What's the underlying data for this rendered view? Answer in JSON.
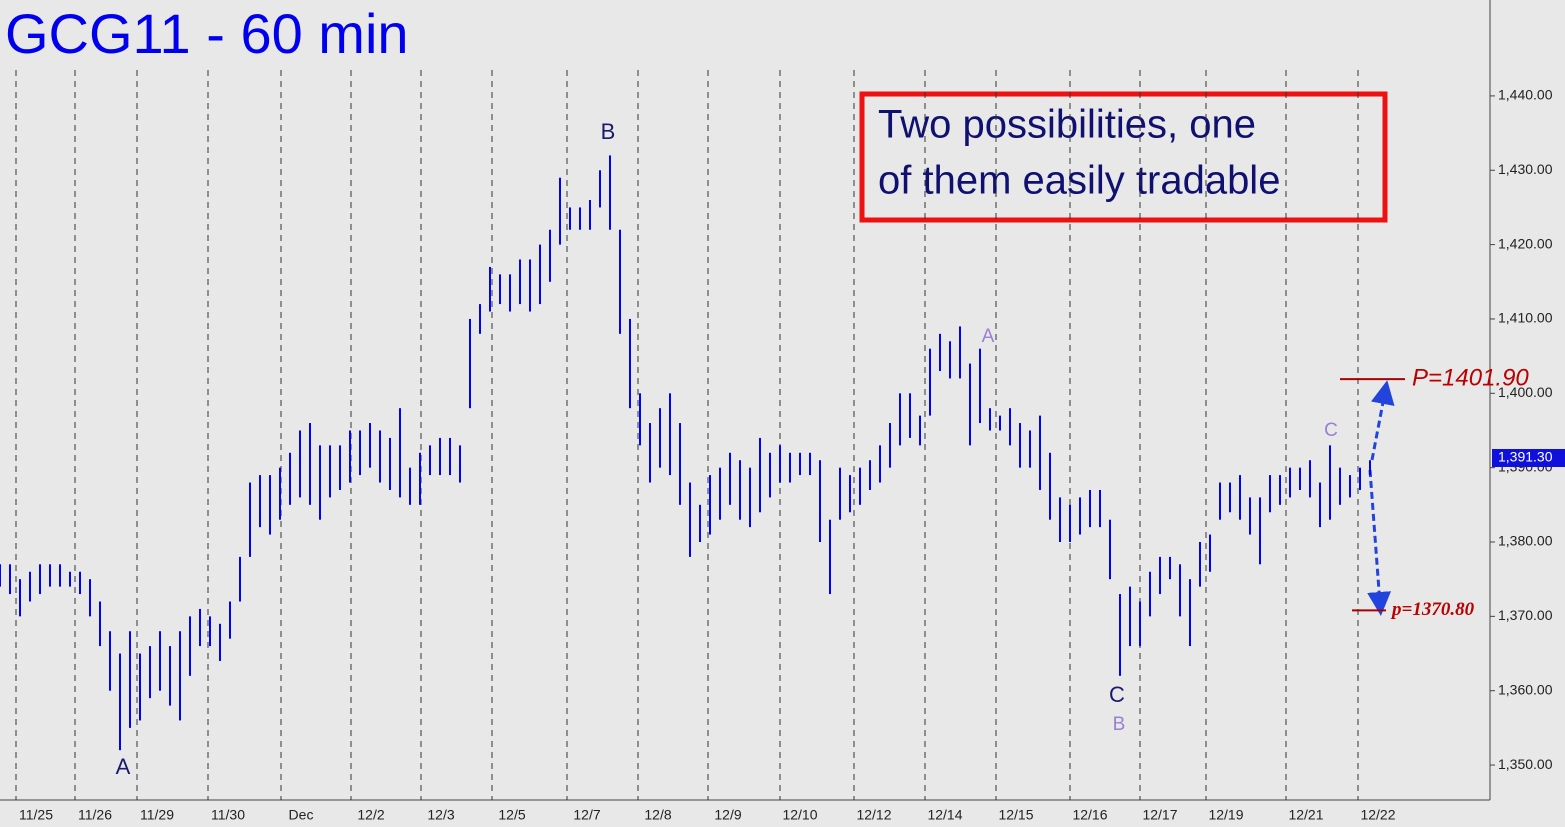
{
  "chart_data": {
    "type": "hlbar",
    "title": "GCG11 - 60 min",
    "color": "#0000ff",
    "x": [
      0,
      1,
      2,
      3,
      4,
      5,
      6,
      7,
      8,
      9,
      10,
      11,
      12,
      13,
      14,
      15,
      16,
      17,
      18,
      19,
      20,
      21,
      22,
      23,
      24,
      25,
      26,
      27,
      28,
      29,
      30,
      31,
      32,
      33,
      34,
      35,
      36,
      37,
      38,
      39,
      40,
      41,
      42,
      43,
      44,
      45,
      46,
      47,
      48,
      49,
      50,
      51,
      52,
      53,
      54,
      55,
      56,
      57,
      58,
      59,
      60,
      61,
      62,
      63,
      64,
      65,
      66,
      67,
      68,
      69,
      70,
      71,
      72,
      73,
      74,
      75,
      76,
      77,
      78,
      79,
      80,
      81,
      82,
      83,
      84,
      85,
      86,
      87,
      88,
      89,
      90,
      91,
      92,
      93,
      94,
      95,
      96,
      97,
      98,
      99,
      100,
      101,
      102,
      103,
      104,
      105,
      106,
      107,
      108,
      109,
      110,
      111,
      112,
      113,
      114,
      115,
      116,
      117,
      118,
      119,
      120,
      121,
      122,
      123,
      124,
      125,
      126,
      127,
      128,
      129,
      130,
      131,
      132,
      133,
      134,
      135,
      136,
      137
    ],
    "high": [
      1377,
      1377,
      1375,
      1376,
      1377,
      1377,
      1377,
      1376,
      1376,
      1375,
      1372,
      1368,
      1365,
      1368,
      1365,
      1366,
      1368,
      1366,
      1368,
      1370,
      1371,
      1370,
      1369,
      1372,
      1378,
      1388,
      1389,
      1389,
      1390,
      1392,
      1395,
      1396,
      1393,
      1393,
      1393,
      1395,
      1395,
      1396,
      1395,
      1394,
      1398,
      1390,
      1392,
      1393,
      1394,
      1394,
      1393,
      1410,
      1412,
      1417,
      1416,
      1416,
      1418,
      1418,
      1420,
      1422,
      1429,
      1425,
      1425,
      1426,
      1430,
      1432,
      1422,
      1410,
      1400,
      1396,
      1398,
      1400,
      1396,
      1388,
      1385,
      1389,
      1390,
      1392,
      1391,
      1390,
      1394,
      1392,
      1393,
      1392,
      1392,
      1392,
      1391,
      1383,
      1390,
      1389,
      1390,
      1391,
      1393,
      1396,
      1400,
      1400,
      1397,
      1406,
      1408,
      1407,
      1409,
      1404,
      1406,
      1398,
      1397,
      1398,
      1396,
      1395,
      1397,
      1392,
      1386,
      1385,
      1386,
      1387,
      1387,
      1383,
      1373,
      1374,
      1372,
      1376,
      1378,
      1378,
      1377,
      1375,
      1380,
      1381,
      1388,
      1388,
      1389,
      1386,
      1386,
      1389,
      1389,
      1390,
      1390,
      1391,
      1388,
      1393,
      1390,
      1389,
      1390,
      1391
    ],
    "low": [
      1374,
      1373,
      1370,
      1372,
      1373,
      1374,
      1374,
      1374,
      1373,
      1370,
      1366,
      1360,
      1352,
      1355,
      1356,
      1359,
      1360,
      1358,
      1356,
      1362,
      1366,
      1366,
      1364,
      1367,
      1372,
      1378,
      1382,
      1381,
      1383,
      1385,
      1386,
      1385,
      1383,
      1386,
      1387,
      1388,
      1389,
      1390,
      1388,
      1387,
      1386,
      1385,
      1385,
      1389,
      1389,
      1389,
      1388,
      1398,
      1408,
      1411,
      1412,
      1411,
      1412,
      1411,
      1412,
      1415,
      1420,
      1422,
      1422,
      1422,
      1425,
      1422,
      1408,
      1398,
      1393,
      1388,
      1390,
      1389,
      1385,
      1378,
      1380,
      1381,
      1383,
      1385,
      1383,
      1382,
      1384,
      1386,
      1388,
      1388,
      1389,
      1389,
      1380,
      1373,
      1383,
      1384,
      1385,
      1387,
      1388,
      1390,
      1393,
      1394,
      1393,
      1397,
      1403,
      1402,
      1402,
      1393,
      1396,
      1395,
      1395,
      1393,
      1390,
      1390,
      1387,
      1383,
      1380,
      1380,
      1381,
      1382,
      1382,
      1375,
      1362,
      1366,
      1366,
      1370,
      1373,
      1375,
      1370,
      1366,
      1374,
      1376,
      1383,
      1384,
      1383,
      1381,
      1377,
      1384,
      1385,
      1386,
      1387,
      1386,
      1382,
      1383,
      1385,
      1386,
      1387,
      1389
    ],
    "xlim": [
      0,
      149
    ],
    "xticks": [
      {
        "value": 1.6,
        "label": "11/25"
      },
      {
        "value": 7.5,
        "label": "11/26"
      },
      {
        "value": 13.7,
        "label": "11/29"
      },
      {
        "value": 20.8,
        "label": "11/30"
      },
      {
        "value": 28.1,
        "label": "Dec"
      },
      {
        "value": 35.1,
        "label": "12/2"
      },
      {
        "value": 42.1,
        "label": "12/3"
      },
      {
        "value": 49.2,
        "label": "12/5"
      },
      {
        "value": 56.7,
        "label": "12/7"
      },
      {
        "value": 63.8,
        "label": "12/8"
      },
      {
        "value": 70.8,
        "label": "12/9"
      },
      {
        "value": 78,
        "label": "12/10"
      },
      {
        "value": 85.4,
        "label": "12/12"
      },
      {
        "value": 92.5,
        "label": "12/14"
      },
      {
        "value": 99.6,
        "label": "12/15"
      },
      {
        "value": 107,
        "label": "12/16"
      },
      {
        "value": 114,
        "label": "12/17"
      },
      {
        "value": 120.6,
        "label": "12/19"
      },
      {
        "value": 128.6,
        "label": "12/21"
      },
      {
        "value": 135.8,
        "label": "12/22"
      }
    ],
    "ylim": [
      1345.3,
      1452.9
    ],
    "yticks": [
      {
        "value": 1350,
        "label": "1,350.00"
      },
      {
        "value": 1360,
        "label": "1,360.00"
      },
      {
        "value": 1370,
        "label": "1,370.00"
      },
      {
        "value": 1380,
        "label": "1,380.00"
      },
      {
        "value": 1390,
        "label": "1,390.00"
      },
      {
        "value": 1400,
        "label": "1,400.00"
      },
      {
        "value": 1410,
        "label": "1,410.00"
      },
      {
        "value": 1420,
        "label": "1,420.00"
      },
      {
        "value": 1430,
        "label": "1,430.00"
      },
      {
        "value": 1440,
        "label": "1,440.00"
      }
    ],
    "last_price": {
      "value": 1391.3,
      "label": "1,391.30"
    },
    "targets": [
      {
        "value": 1401.9,
        "label": "P=1401.90"
      },
      {
        "value": 1370.8,
        "label": "p=1370.80"
      }
    ],
    "note": [
      "Two possibilities, one",
      "of them easily tradable"
    ],
    "wave_labels": [
      "A",
      "B",
      "A",
      "C",
      "B",
      "C"
    ]
  }
}
